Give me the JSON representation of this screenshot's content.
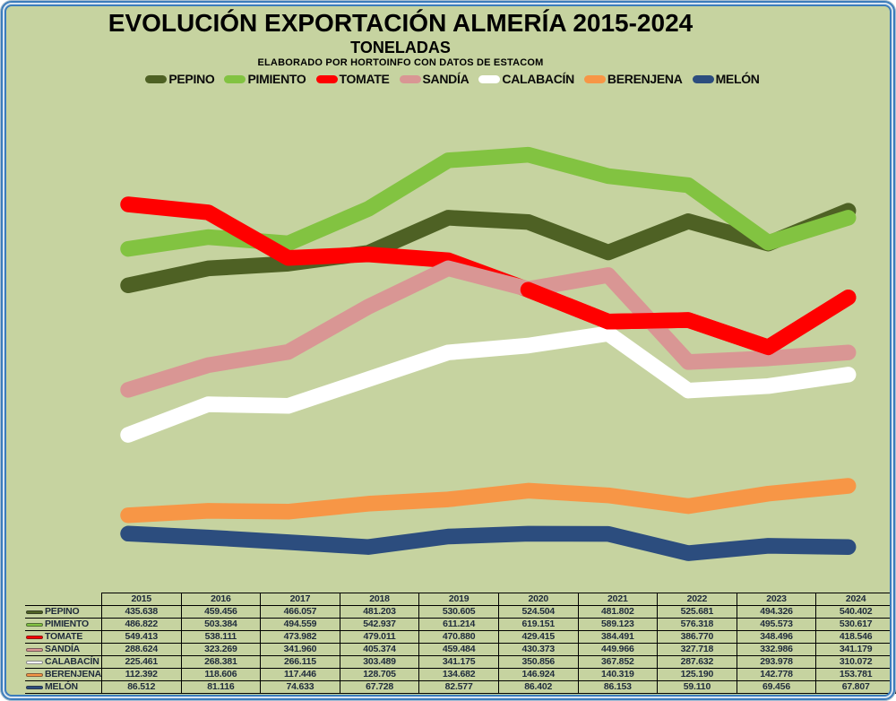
{
  "header": {
    "title": "EVOLUCIÓN EXPORTACIÓN ALMERÍA 2015-2024",
    "subtitle": "TONELADAS",
    "source": "ELABORADO POR HORTOINFO CON DATOS DE ESTACOM"
  },
  "colors": {
    "background": "#c6d3a0",
    "frame_blue": "#3b7cbc",
    "frame_light": "#d6e4f2",
    "table_text": "#202c3c",
    "table_border": "#000000"
  },
  "chart_data": {
    "type": "line",
    "title": "EVOLUCIÓN EXPORTACIÓN ALMERÍA 2015-2024",
    "ylabel": "TONELADAS",
    "xlabel": "",
    "grid": false,
    "legend_position": "top",
    "number_format": "thousands-dot",
    "categories": [
      "2015",
      "2016",
      "2017",
      "2018",
      "2019",
      "2020",
      "2021",
      "2022",
      "2023",
      "2024"
    ],
    "series": [
      {
        "name": "PEPINO",
        "color": "#4e6124",
        "values": [
          435638,
          459456,
          466057,
          481203,
          530605,
          524504,
          481802,
          525681,
          494326,
          540402
        ]
      },
      {
        "name": "PIMIENTO",
        "color": "#82c341",
        "values": [
          486822,
          503384,
          494559,
          542937,
          611214,
          619151,
          589123,
          576318,
          495573,
          530617
        ]
      },
      {
        "name": "TOMATE",
        "color": "#ff0000",
        "values": [
          549413,
          538111,
          473982,
          479011,
          470880,
          429415,
          384491,
          386770,
          348496,
          418546
        ]
      },
      {
        "name": "SANDÍA",
        "color": "#d99694",
        "values": [
          288624,
          323269,
          341960,
          405374,
          459484,
          430373,
          449966,
          327718,
          332986,
          341179
        ]
      },
      {
        "name": "CALABACÍN",
        "color": "#ffffff",
        "values": [
          225461,
          268381,
          266115,
          303489,
          341175,
          350856,
          367852,
          287632,
          293978,
          310072
        ]
      },
      {
        "name": "BERENJENA",
        "color": "#f79646",
        "values": [
          112392,
          118606,
          117446,
          128705,
          134682,
          146924,
          140319,
          125190,
          142778,
          153781
        ]
      },
      {
        "name": "MELÓN",
        "color": "#2c4d7e",
        "values": [
          86512,
          81116,
          74633,
          67728,
          82577,
          86402,
          86153,
          59110,
          69456,
          67807
        ]
      }
    ]
  }
}
